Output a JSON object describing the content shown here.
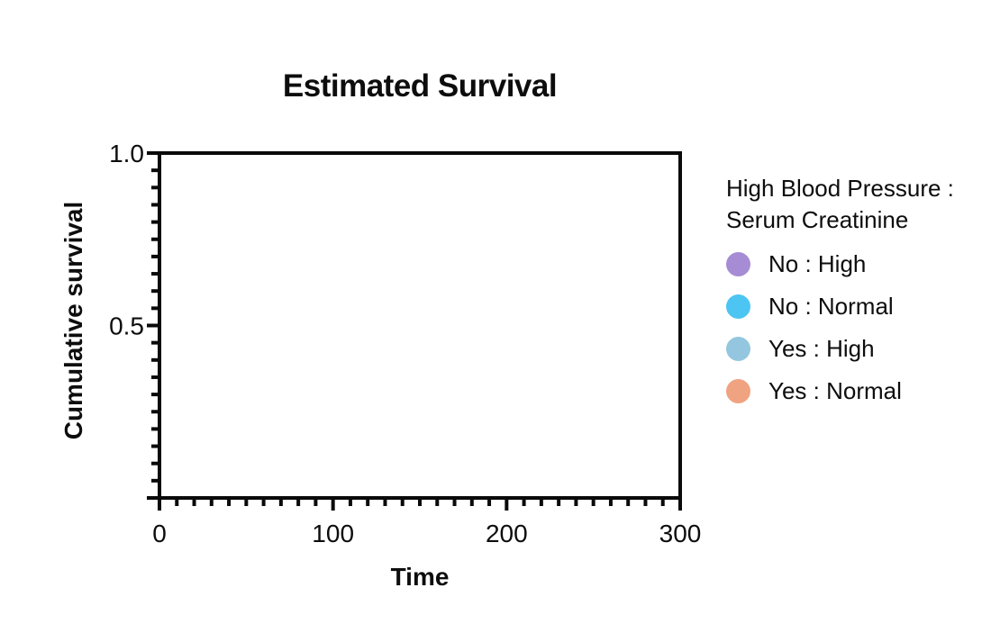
{
  "chart_data": {
    "type": "line",
    "title": "Estimated Survival",
    "xlabel": "Time",
    "ylabel": "Cumulative survival",
    "xlim": [
      0,
      300
    ],
    "ylim": [
      0,
      1
    ],
    "xticks": [
      0,
      100,
      200,
      300
    ],
    "xtick_labels": [
      "0",
      "100",
      "200",
      "300"
    ],
    "yticks": [
      0.5,
      1.0
    ],
    "ytick_labels": [
      "0.5",
      "1.0"
    ],
    "x_minor_step": 10,
    "x_major_step": 100,
    "y_minor_step": 0.05,
    "y_major_step": 0.5,
    "grid": false,
    "frame": true,
    "axis_color": "#0a0a0a",
    "tick_label_font_px": 28,
    "legend_position": "right",
    "legend": {
      "title_line1": "High Blood Pressure :",
      "title_line2": "Serum Creatinine",
      "items": [
        {
          "label": "No : High",
          "color": "#a68cd4"
        },
        {
          "label": "No : Normal",
          "color": "#4dc5f2"
        },
        {
          "label": "Yes : High",
          "color": "#94c7df"
        },
        {
          "label": "Yes : Normal",
          "color": "#f0a380"
        }
      ]
    },
    "series": [
      {
        "name": "No : High",
        "color": "#a68cd4",
        "x": [],
        "y": []
      },
      {
        "name": "No : Normal",
        "color": "#4dc5f2",
        "x": [],
        "y": []
      },
      {
        "name": "Yes : High",
        "color": "#94c7df",
        "x": [],
        "y": []
      },
      {
        "name": "Yes : Normal",
        "color": "#f0a380",
        "x": [],
        "y": []
      }
    ]
  }
}
